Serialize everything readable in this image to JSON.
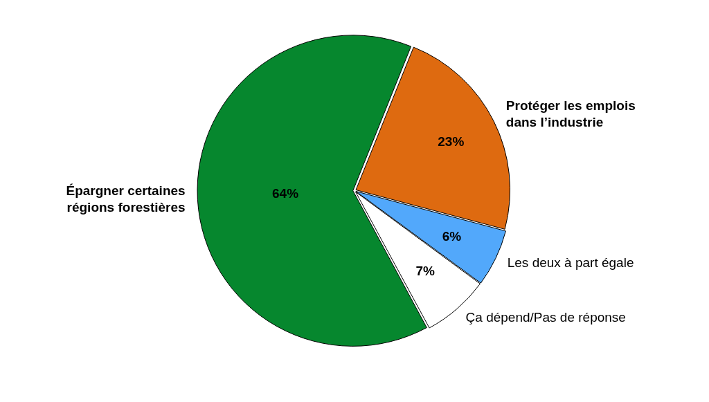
{
  "chart_data": {
    "type": "pie",
    "categories": [
      "Protéger les emplois dans l’industrie",
      "Les deux à part égale",
      "Ça dépend/Pas de réponse",
      "Épargner certaines régions forestières"
    ],
    "values": [
      23,
      6,
      7,
      64
    ],
    "colors": [
      "#de6a10",
      "#52a8fb",
      "#ffffff",
      "#06872e"
    ],
    "value_labels": [
      "23%",
      "6%",
      "7%",
      "64%"
    ],
    "legend": false
  }
}
